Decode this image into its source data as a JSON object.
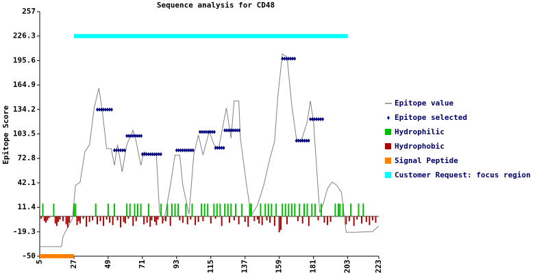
{
  "chart_data": {
    "type": "line",
    "title": "Sequence analysis for CD48",
    "y_label": "Epitope Score",
    "xlim": [
      5,
      223
    ],
    "xticks": [
      5,
      27,
      49,
      71,
      93,
      115,
      137,
      159,
      181,
      203,
      223
    ],
    "ylim": [
      -50,
      257
    ],
    "yticks": [
      -50,
      -19.3,
      11.4,
      42.1,
      72.8,
      103.5,
      134.2,
      164.9,
      195.6,
      226.3,
      257
    ],
    "series": [
      {
        "name": "Epitope value",
        "type": "line",
        "color": "#808080",
        "x": [
          5,
          19,
          20,
          26,
          28,
          31,
          34,
          37,
          40,
          43,
          45,
          48,
          51,
          53,
          55,
          58,
          61,
          65,
          67,
          70,
          72,
          76,
          80,
          82,
          85,
          89,
          92,
          95,
          97,
          101,
          104,
          107,
          110,
          114,
          117,
          120,
          125,
          128,
          130,
          133,
          134,
          138,
          141,
          145,
          149,
          153,
          156,
          158,
          161,
          164,
          167,
          170,
          173,
          177,
          179,
          181,
          185,
          187,
          190,
          193,
          196,
          199,
          202,
          208,
          219,
          223
        ],
        "values": [
          -38,
          -38,
          -25,
          -3,
          39,
          43,
          81,
          90,
          136,
          161,
          136,
          85,
          85,
          64,
          90,
          56,
          90,
          108,
          94,
          64,
          81,
          77,
          77,
          5,
          -5,
          39,
          77,
          77,
          39,
          3,
          77,
          102,
          77,
          107,
          90,
          85,
          136,
          98,
          145,
          145,
          98,
          39,
          1,
          14,
          39,
          73,
          94,
          149,
          204,
          200,
          140,
          98,
          94,
          119,
          145,
          119,
          5,
          14,
          35,
          43,
          39,
          30,
          -20,
          -20,
          -19,
          -12
        ]
      },
      {
        "name": "Epitope selected",
        "type": "segments",
        "color": "#000080",
        "segments": [
          {
            "start": 42,
            "end": 52,
            "value": 134
          },
          {
            "start": 53,
            "end": 60,
            "value": 83
          },
          {
            "start": 61,
            "end": 71,
            "value": 101
          },
          {
            "start": 71,
            "end": 84,
            "value": 78
          },
          {
            "start": 93,
            "end": 104,
            "value": 83
          },
          {
            "start": 108,
            "end": 118,
            "value": 106
          },
          {
            "start": 118,
            "end": 124,
            "value": 86
          },
          {
            "start": 124,
            "end": 134,
            "value": 108
          },
          {
            "start": 161,
            "end": 170,
            "value": 198
          },
          {
            "start": 170,
            "end": 178,
            "value": 95
          },
          {
            "start": 179,
            "end": 188,
            "value": 122
          }
        ]
      },
      {
        "name": "Hydrophilic",
        "type": "bar",
        "color": "#00bb00",
        "x": [
          7,
          14,
          27,
          28,
          41,
          49,
          53,
          61,
          63,
          66,
          68,
          70,
          75,
          83,
          87,
          90,
          92,
          94,
          99,
          103,
          109,
          111,
          113,
          117,
          119,
          121,
          124,
          126,
          128,
          131,
          135,
          140,
          141,
          147,
          150,
          152,
          154,
          157,
          161,
          163,
          165,
          167,
          169,
          172,
          175,
          177,
          180,
          182,
          186,
          195,
          197,
          198,
          200,
          205,
          210,
          213
        ],
        "values": [
          16,
          16,
          16,
          16,
          16,
          16,
          16,
          16,
          16,
          16,
          16,
          16,
          16,
          16,
          16,
          16,
          16,
          16,
          16,
          16,
          16,
          16,
          16,
          16,
          16,
          16,
          16,
          16,
          16,
          16,
          16,
          16,
          16,
          16,
          16,
          16,
          16,
          16,
          16,
          16,
          16,
          16,
          16,
          16,
          16,
          16,
          16,
          16,
          16,
          16,
          16,
          16,
          16,
          16,
          16,
          16
        ]
      },
      {
        "name": "Hydrophobic",
        "type": "bar",
        "color": "#aa0000",
        "x": [
          6,
          8,
          9,
          10,
          11,
          15,
          16,
          17,
          18,
          20,
          22,
          23,
          24,
          29,
          30,
          31,
          33,
          35,
          37,
          39,
          42,
          44,
          46,
          48,
          50,
          52,
          55,
          57,
          59,
          60,
          62,
          65,
          67,
          72,
          74,
          76,
          77,
          79,
          80,
          81,
          84,
          86,
          89,
          95,
          97,
          100,
          102,
          105,
          107,
          110,
          115,
          118,
          122,
          127,
          130,
          133,
          137,
          139,
          143,
          145,
          146,
          148,
          151,
          153,
          156,
          159,
          160,
          164,
          171,
          174,
          178,
          184,
          188,
          190,
          192,
          202,
          204,
          207,
          209,
          212,
          215,
          217,
          219,
          221
        ],
        "values": [
          -3,
          -6,
          -8,
          -5,
          -2,
          -9,
          -12,
          -7,
          -4,
          -6,
          -10,
          -14,
          -8,
          -11,
          -6,
          -9,
          -3,
          -13,
          -7,
          -5,
          -10,
          -6,
          -12,
          -4,
          -8,
          -11,
          -5,
          -14,
          -7,
          -9,
          -3,
          -12,
          -6,
          -10,
          -8,
          -13,
          -5,
          -7,
          -11,
          -4,
          -9,
          -6,
          -12,
          -5,
          -8,
          -10,
          -4,
          -11,
          -7,
          -6,
          -9,
          -3,
          -12,
          -8,
          -5,
          -10,
          -7,
          -13,
          -6,
          -4,
          -9,
          -11,
          -5,
          -8,
          -12,
          -20,
          -17,
          -10,
          -6,
          -9,
          -12,
          -5,
          -8,
          -11,
          -7,
          -10,
          -6,
          -12,
          -4,
          -9,
          -7,
          -11,
          -5,
          -8
        ]
      },
      {
        "name": "Signal Peptide",
        "type": "range",
        "color": "#ff8000",
        "start": 5,
        "end": 27,
        "value": -50
      },
      {
        "name": "Customer Request: focus region",
        "type": "range",
        "color": "#00ffff",
        "start": 27,
        "end": 203,
        "value": 226.3
      }
    ]
  }
}
